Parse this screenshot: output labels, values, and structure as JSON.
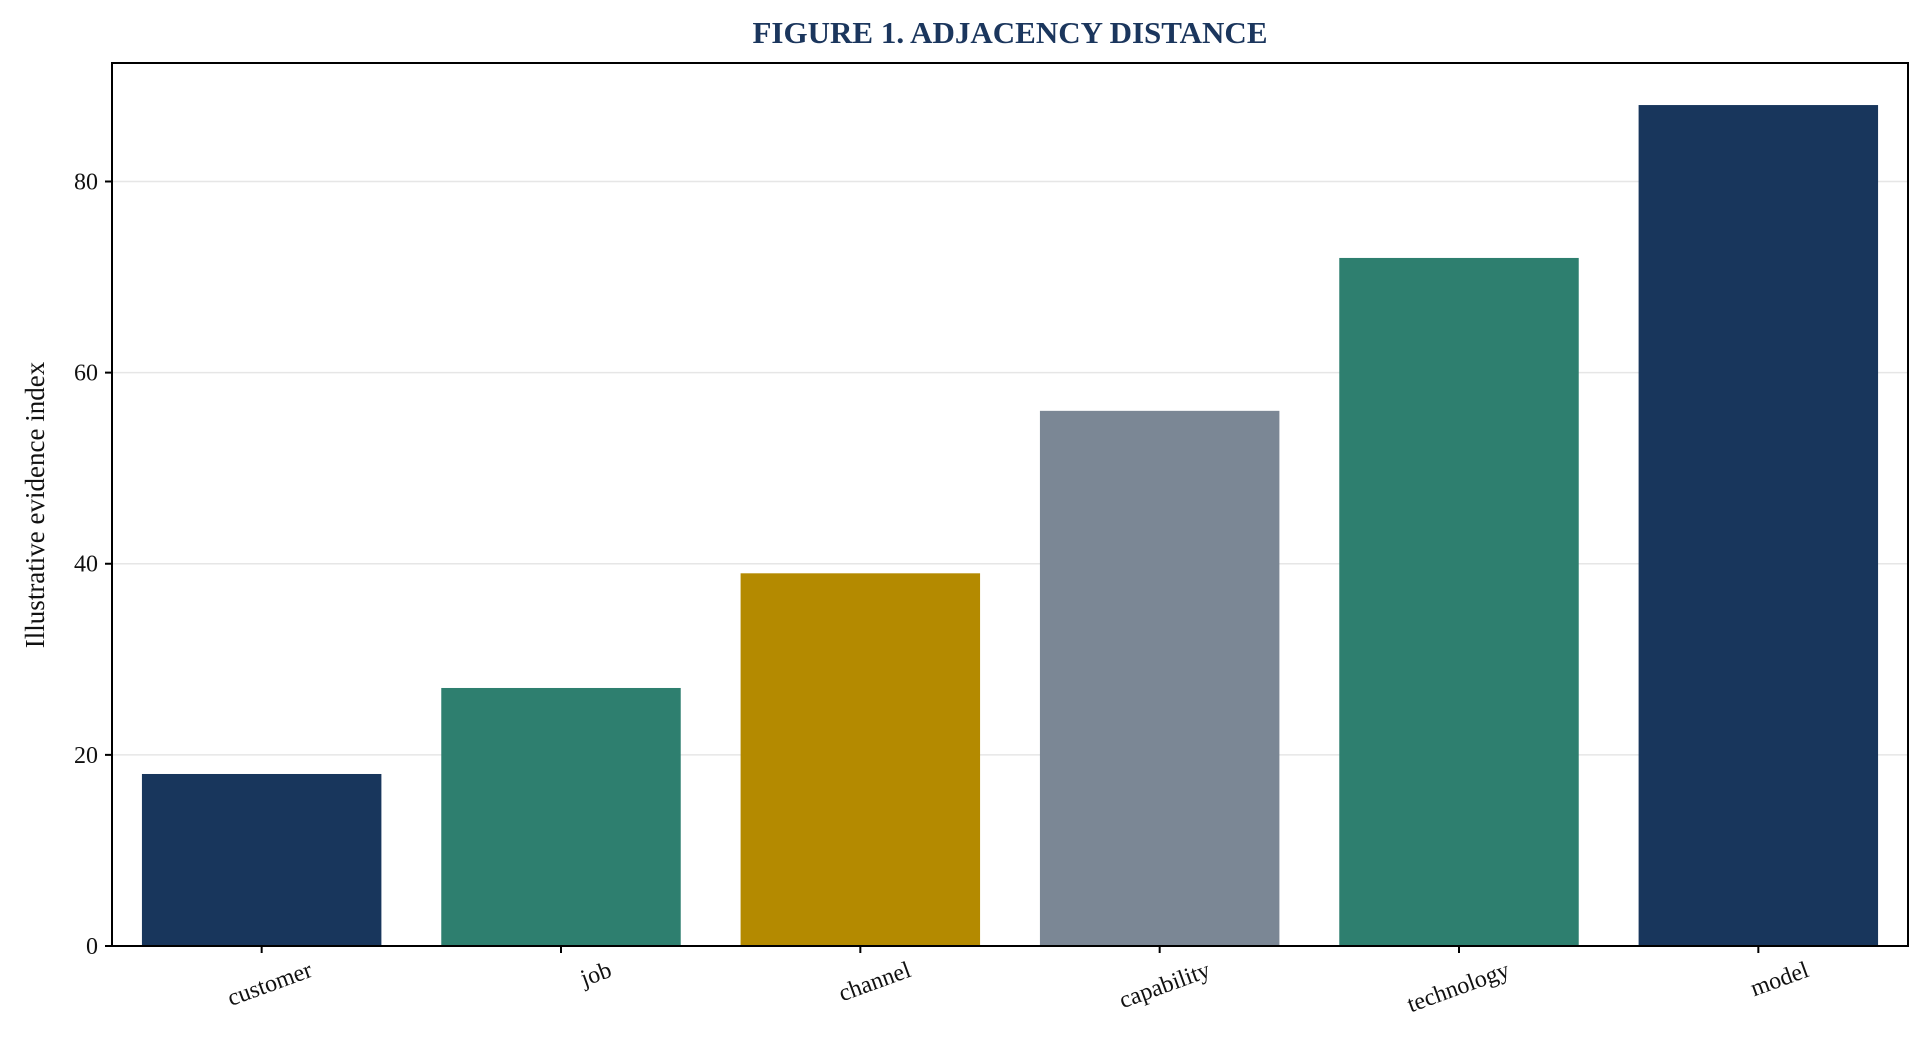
{
  "chart_data": {
    "type": "bar",
    "title": "FIGURE 1. ADJACENCY DISTANCE",
    "xlabel": "",
    "ylabel": "Illustrative evidence index",
    "categories": [
      "customer",
      "job",
      "channel",
      "capability",
      "technology",
      "model"
    ],
    "values": [
      18,
      27,
      39,
      56,
      72,
      88
    ],
    "colors": [
      "#18365c",
      "#2e7f6f",
      "#b48a00",
      "#7b8795",
      "#2e7f6f",
      "#18365c"
    ],
    "ylim": [
      0,
      92.4
    ],
    "yticks": [
      0,
      20,
      40,
      60,
      80
    ],
    "grid": "y",
    "legend": "none"
  },
  "colors": {
    "title": "#1b365d",
    "grid": "#e6e6e6",
    "axis": "#000000"
  }
}
